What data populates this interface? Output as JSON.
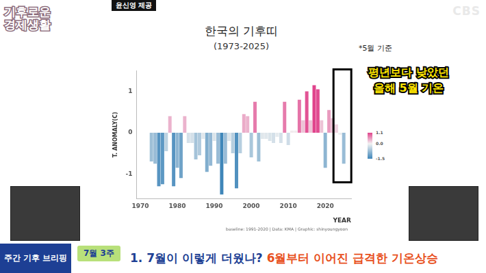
{
  "chart_data": {
    "type": "bar",
    "title": "한국의 기후띠",
    "subtitle": "(1973-2025)",
    "x_label": "YEAR",
    "y_label": "T. ANOMALY(C)",
    "x": [
      1973,
      1974,
      1975,
      1976,
      1977,
      1978,
      1979,
      1980,
      1981,
      1982,
      1983,
      1984,
      1985,
      1986,
      1987,
      1988,
      1989,
      1990,
      1991,
      1992,
      1993,
      1994,
      1995,
      1996,
      1997,
      1998,
      1999,
      2000,
      2001,
      2002,
      2003,
      2004,
      2005,
      2006,
      2007,
      2008,
      2009,
      2010,
      2011,
      2012,
      2013,
      2014,
      2015,
      2016,
      2017,
      2018,
      2019,
      2020,
      2021,
      2022,
      2023,
      2024,
      2025
    ],
    "values": [
      -0.7,
      -0.75,
      -1.3,
      -1.25,
      -0.45,
      0.4,
      -1.3,
      -0.85,
      -1.1,
      0.4,
      -0.25,
      -0.25,
      -0.65,
      -0.55,
      -0.15,
      -0.95,
      -0.8,
      -0.2,
      -0.75,
      -1.5,
      -0.75,
      -0.2,
      -0.5,
      -1.35,
      -0.5,
      0.45,
      0.4,
      -0.6,
      0.75,
      -0.7,
      -0.15,
      -0.15,
      -0.2,
      -0.25,
      -0.1,
      -0.25,
      0.75,
      -0.3,
      0.05,
      0.05,
      0.8,
      0.3,
      1.0,
      0.3,
      1.15,
      1.05,
      0.3,
      -0.85,
      0.55,
      0.35,
      0.2,
      -0.05,
      -0.75
    ],
    "xlim": [
      1969,
      2027
    ],
    "xticks": [
      1970,
      1980,
      1990,
      2000,
      2010,
      2020
    ],
    "ylim": [
      -1.6,
      1.5
    ],
    "yticks": [
      -1,
      0,
      1
    ],
    "grid": false,
    "colorbar": {
      "range": [
        -1.5,
        1.1
      ],
      "ticks": [
        1.1,
        {
          "value": 0,
          "label": "0.0"
        },
        -1.5
      ],
      "colors": [
        "#3f86b9",
        "#f2f2f2",
        "#e0448c"
      ]
    }
  },
  "page": {
    "credit": "윤신영 제공",
    "program": "기후로운 경제생활",
    "channel": "CBS",
    "note": "*5월 기준",
    "callout": [
      "평년보다 낮았던",
      "올해 5월 기온"
    ],
    "caption": "baseline: 1991-2020 | Data: KMA | Graphic: shinyoungyoon",
    "segment": "주간 기후 브리핑",
    "week": "7월 3주",
    "headline": [
      "1. 7월이 이렇게 더웠나?",
      "6월부터 이어진 급격한 기온상승"
    ]
  }
}
